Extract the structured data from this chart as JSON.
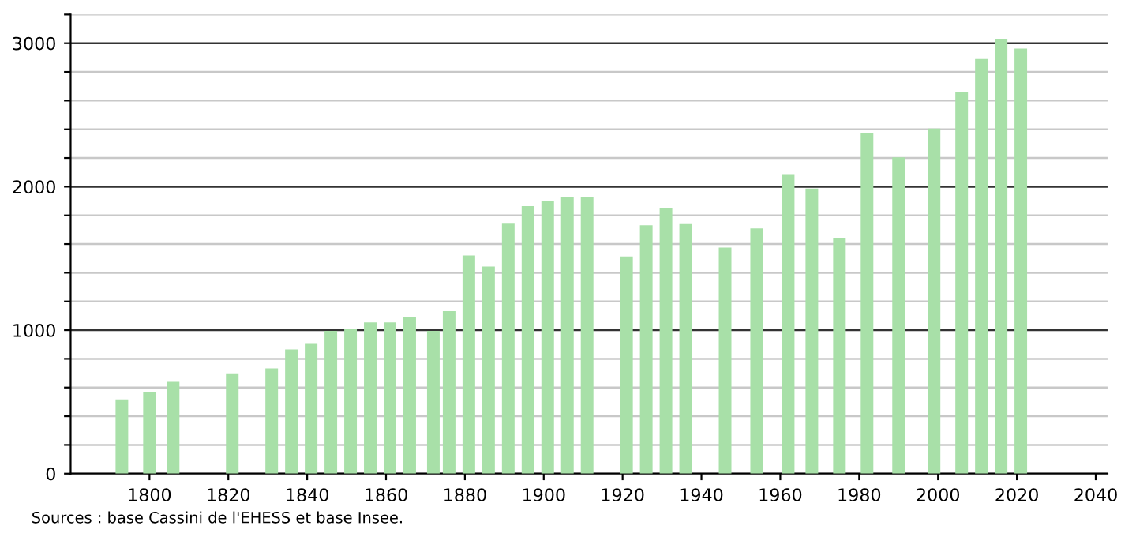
{
  "chart_data": {
    "type": "bar",
    "x": [
      1793,
      1800,
      1806,
      1821,
      1831,
      1836,
      1841,
      1846,
      1851,
      1856,
      1861,
      1866,
      1872,
      1876,
      1881,
      1886,
      1891,
      1896,
      1901,
      1906,
      1911,
      1921,
      1926,
      1931,
      1936,
      1946,
      1954,
      1962,
      1968,
      1975,
      1982,
      1990,
      1999,
      2006,
      2011,
      2016,
      2021
    ],
    "values": [
      518,
      566,
      640,
      699,
      733,
      866,
      910,
      995,
      1010,
      1054,
      1054,
      1088,
      995,
      1132,
      1520,
      1443,
      1742,
      1865,
      1898,
      1931,
      1931,
      1513,
      1731,
      1850,
      1739,
      1576,
      1709,
      2087,
      1987,
      1639,
      2375,
      2205,
      2405,
      2660,
      2889,
      3026,
      2963
    ],
    "color": "#a8e0a8",
    "xlim": [
      1780,
      2043
    ],
    "xticks": [
      1800,
      1820,
      1840,
      1860,
      1880,
      1900,
      1920,
      1940,
      1960,
      1980,
      2000,
      2020,
      2040
    ],
    "ylim": [
      0,
      3200
    ],
    "yticks": [
      0,
      {
        "value": 200,
        "label": null
      },
      {
        "value": 400,
        "label": null
      },
      {
        "value": 600,
        "label": null
      },
      {
        "value": 800,
        "label": null
      },
      1000,
      {
        "value": 1200,
        "label": null
      },
      {
        "value": 1400,
        "label": null
      },
      {
        "value": 1600,
        "label": null
      },
      {
        "value": 1800,
        "label": null
      },
      2000,
      {
        "value": 2200,
        "label": null
      },
      {
        "value": 2400,
        "label": null
      },
      {
        "value": 2600,
        "label": null
      },
      {
        "value": 2800,
        "label": null
      },
      3000,
      {
        "value": 3200,
        "label": null
      }
    ],
    "grid": "y",
    "annotations": [
      "Sources : base Cassini de l'EHESS et base Insee."
    ]
  }
}
